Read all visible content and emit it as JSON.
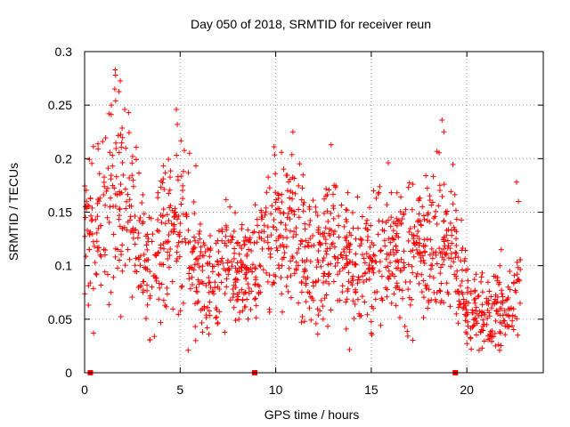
{
  "chart_data": {
    "type": "scatter",
    "title": "Day 050 of 2018, SRMTID for receiver reun",
    "xlabel": "GPS time / hours",
    "ylabel": "SRMTID / TECUs",
    "xlim": [
      0,
      24
    ],
    "ylim": [
      0,
      0.3
    ],
    "xticks": [
      0,
      5,
      10,
      15,
      20
    ],
    "xtick_labels": [
      "0",
      "5",
      "10",
      "15",
      "20"
    ],
    "yticks": [
      0,
      0.05,
      0.1,
      0.15,
      0.2,
      0.25,
      0.3
    ],
    "ytick_labels": [
      "0",
      "0.05",
      "0.1",
      "0.15",
      "0.2",
      "0.25",
      "0.3"
    ],
    "grid": true,
    "marker": "+",
    "color": "#ff0000",
    "series": [
      {
        "name": "SRMTID",
        "trend_profile": [
          [
            0.0,
            0.12
          ],
          [
            0.5,
            0.14
          ],
          [
            1.0,
            0.15
          ],
          [
            1.5,
            0.17
          ],
          [
            2.0,
            0.17
          ],
          [
            2.5,
            0.15
          ],
          [
            3.0,
            0.11
          ],
          [
            3.5,
            0.11
          ],
          [
            4.0,
            0.12
          ],
          [
            4.5,
            0.13
          ],
          [
            5.0,
            0.14
          ],
          [
            5.5,
            0.12
          ],
          [
            6.0,
            0.1
          ],
          [
            6.5,
            0.085
          ],
          [
            7.0,
            0.09
          ],
          [
            7.5,
            0.095
          ],
          [
            8.0,
            0.09
          ],
          [
            8.5,
            0.095
          ],
          [
            9.0,
            0.105
          ],
          [
            9.5,
            0.12
          ],
          [
            10.0,
            0.13
          ],
          [
            10.5,
            0.14
          ],
          [
            11.0,
            0.135
          ],
          [
            11.5,
            0.11
          ],
          [
            12.0,
            0.1
          ],
          [
            12.5,
            0.11
          ],
          [
            13.0,
            0.12
          ],
          [
            13.5,
            0.11
          ],
          [
            14.0,
            0.105
          ],
          [
            14.5,
            0.11
          ],
          [
            15.0,
            0.1
          ],
          [
            15.5,
            0.11
          ],
          [
            16.0,
            0.115
          ],
          [
            16.5,
            0.11
          ],
          [
            17.0,
            0.12
          ],
          [
            17.5,
            0.115
          ],
          [
            18.0,
            0.115
          ],
          [
            18.5,
            0.12
          ],
          [
            19.0,
            0.12
          ],
          [
            19.5,
            0.12
          ],
          [
            20.0,
            0.07
          ],
          [
            20.5,
            0.06
          ],
          [
            21.0,
            0.055
          ],
          [
            21.5,
            0.06
          ],
          [
            22.0,
            0.06
          ],
          [
            22.5,
            0.07
          ],
          [
            22.8,
            0.09
          ]
        ],
        "peaks": [
          {
            "x": 1.6,
            "y": 0.283
          },
          {
            "x": 1.62,
            "y": 0.278
          },
          {
            "x": 1.58,
            "y": 0.265
          },
          {
            "x": 1.4,
            "y": 0.25
          },
          {
            "x": 2.1,
            "y": 0.246
          },
          {
            "x": 2.3,
            "y": 0.243
          },
          {
            "x": 4.8,
            "y": 0.246
          },
          {
            "x": 4.85,
            "y": 0.232
          },
          {
            "x": 10.9,
            "y": 0.225
          },
          {
            "x": 12.9,
            "y": 0.213
          },
          {
            "x": 18.7,
            "y": 0.236
          },
          {
            "x": 18.8,
            "y": 0.225
          },
          {
            "x": 22.6,
            "y": 0.178
          },
          {
            "x": 22.7,
            "y": 0.16
          },
          {
            "x": 21.8,
            "y": 0.115
          },
          {
            "x": 20.8,
            "y": 0.023
          },
          {
            "x": 21.5,
            "y": 0.025
          },
          {
            "x": 6.5,
            "y": 0.036
          },
          {
            "x": 12.2,
            "y": 0.036
          },
          {
            "x": 15.0,
            "y": 0.037
          }
        ]
      }
    ],
    "baseline_markers": {
      "x": [
        0.3,
        8.9,
        19.4
      ],
      "y": 0
    }
  }
}
